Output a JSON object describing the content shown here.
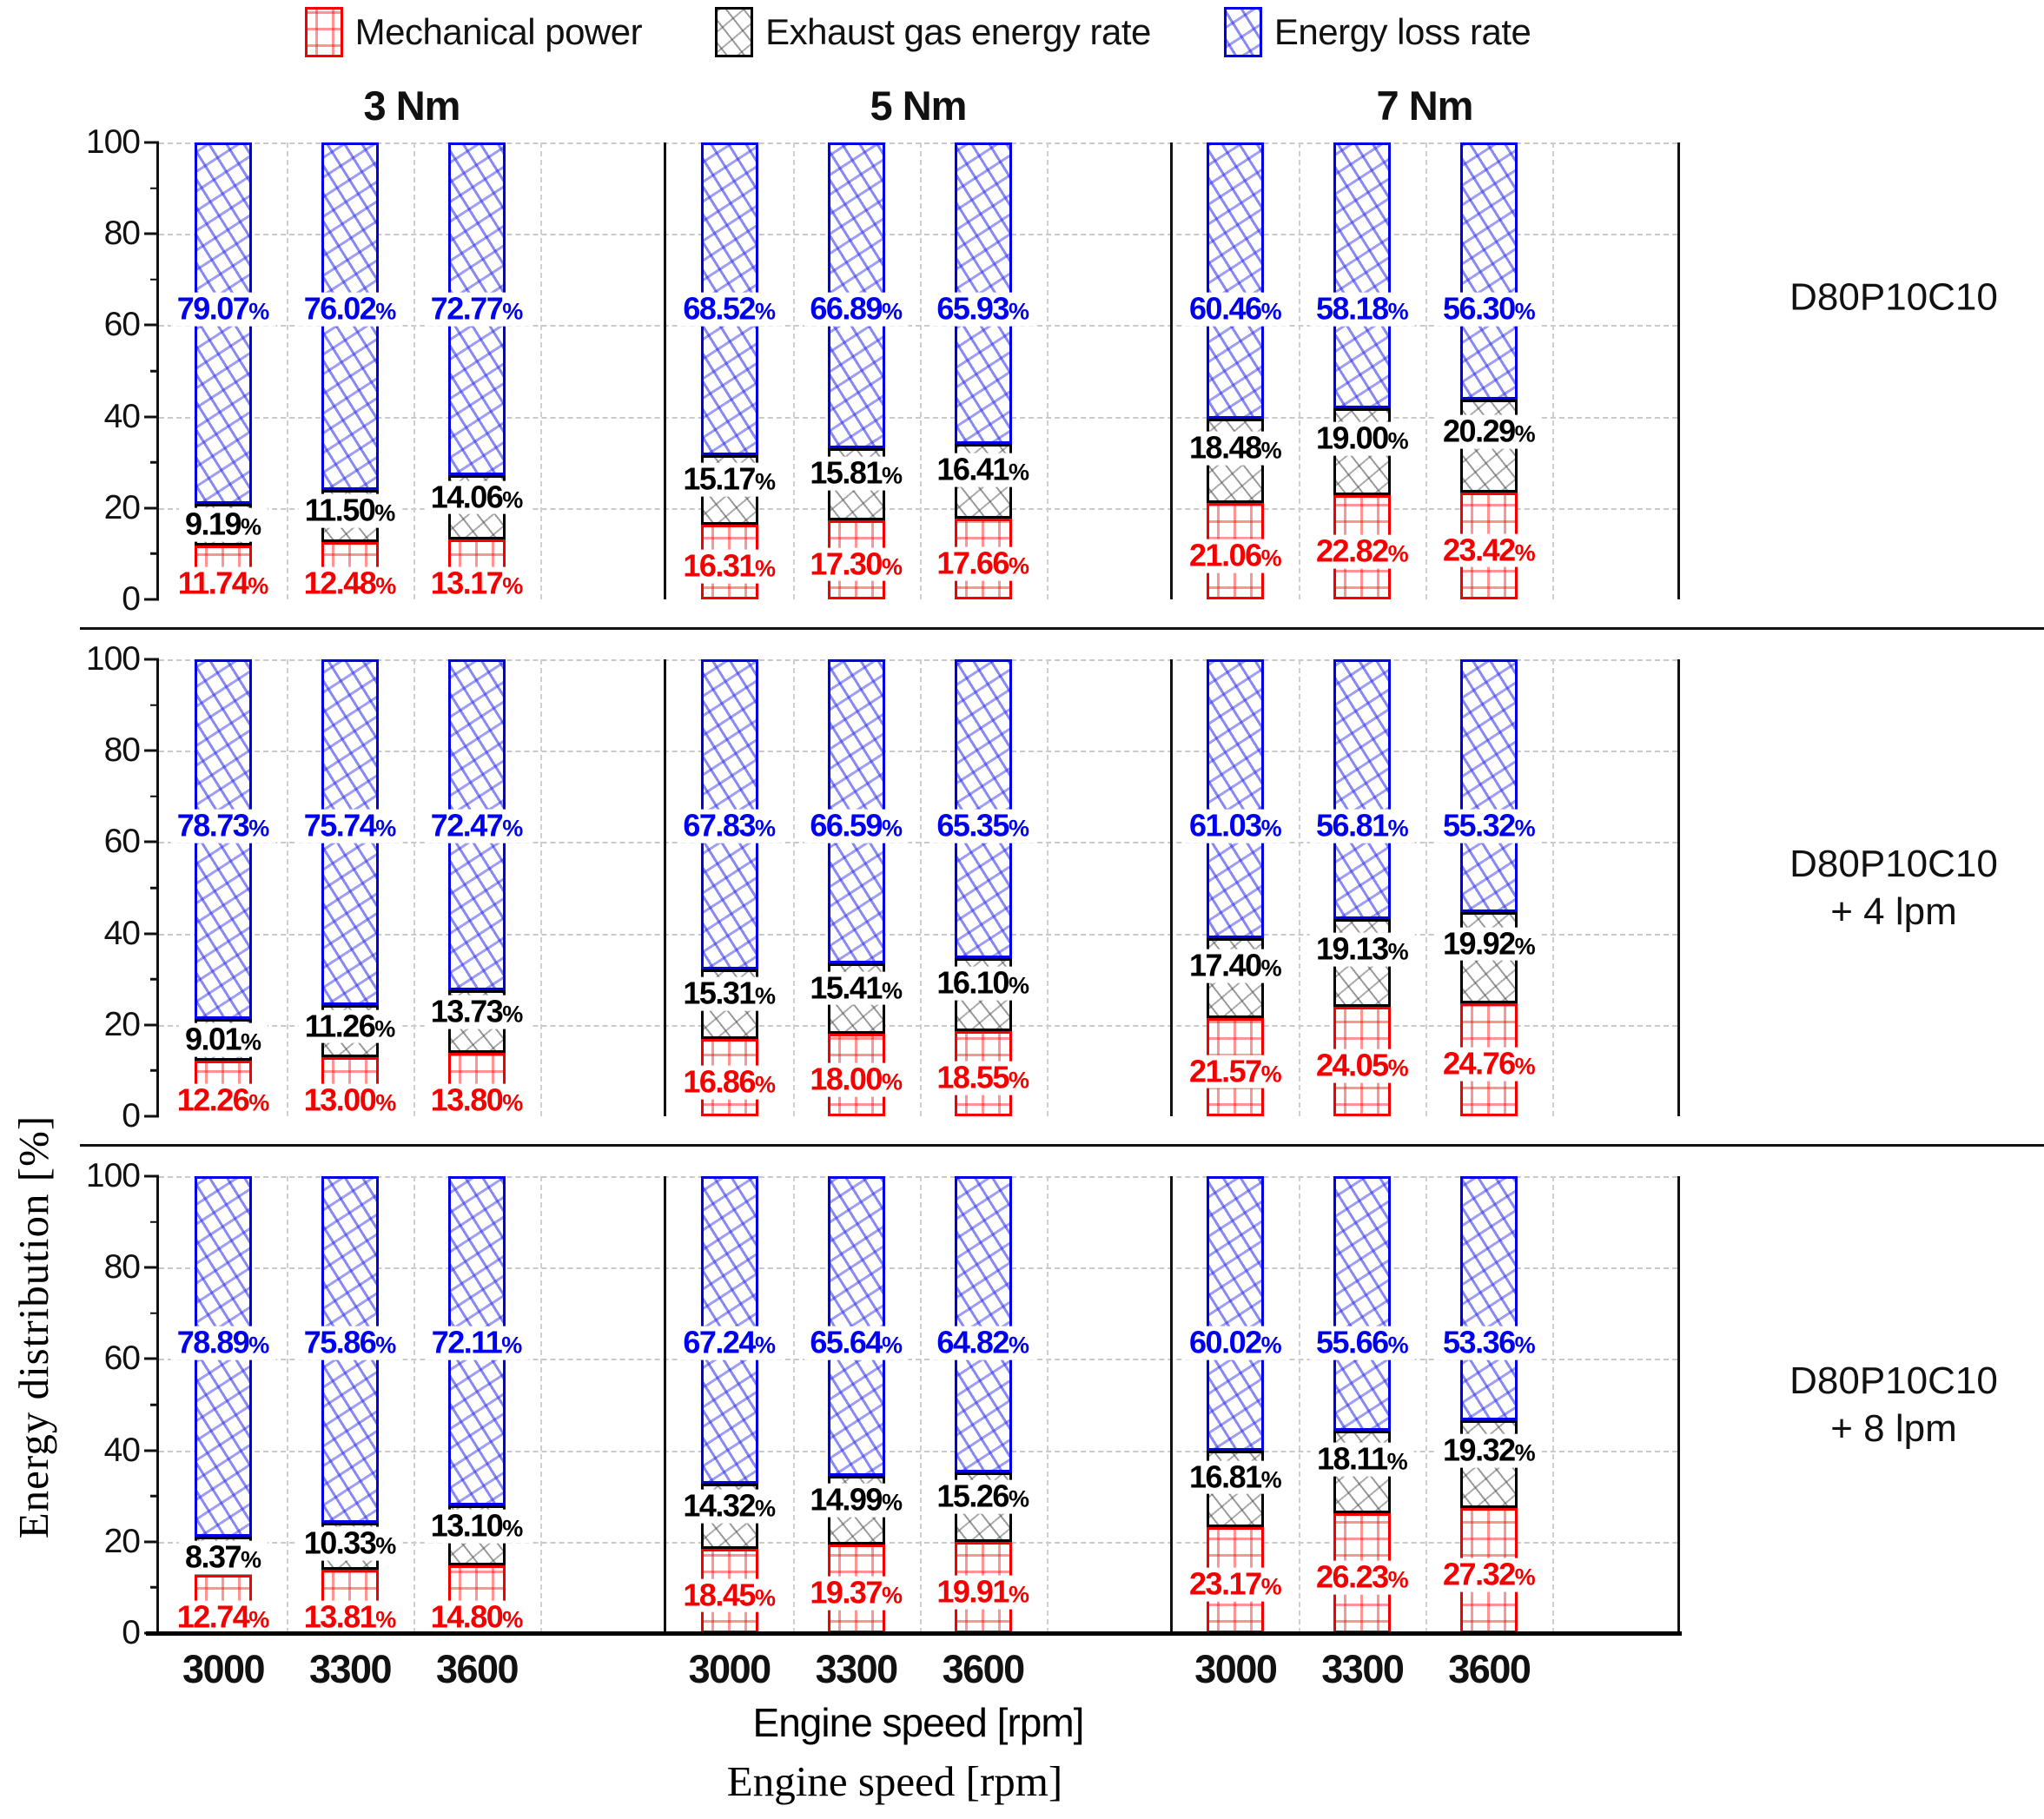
{
  "legend": [
    {
      "label": "Mechanical power",
      "color": "#ff0000"
    },
    {
      "label": "Exhaust gas energy rate",
      "color": "#000000"
    },
    {
      "label": "Energy loss rate",
      "color": "#0000ff"
    }
  ],
  "axes": {
    "ylabel": "Energy distribution  [%]",
    "xlabel": "Engine speed [rpm]",
    "xlabel_caption": "Engine speed [rpm]",
    "yticks": [
      "100",
      "80",
      "60",
      "40",
      "20",
      "0"
    ],
    "unit": "%"
  },
  "chart_data": {
    "type": "bar",
    "stacked": true,
    "grid": true,
    "legend_position": "top",
    "ylim": [
      0,
      100
    ],
    "ylabel": "Energy distribution [%]",
    "xlabel": "Engine speed [rpm]",
    "torque_titles": [
      "3 Nm",
      "5 Nm",
      "7 Nm"
    ],
    "speeds_rpm": [
      "3000",
      "3300",
      "3600"
    ],
    "series_order": [
      "Mechanical power",
      "Exhaust gas energy rate",
      "Energy loss rate"
    ],
    "panels": [
      {
        "row_label": "D80P10C10",
        "row_label2": "",
        "groups": [
          {
            "torque": "3 Nm",
            "bars": [
              {
                "speed": "3000",
                "mechanical_power": "11.74",
                "exhaust_gas": "9.19",
                "energy_loss": "79.07"
              },
              {
                "speed": "3300",
                "mechanical_power": "12.48",
                "exhaust_gas": "11.50",
                "energy_loss": "76.02"
              },
              {
                "speed": "3600",
                "mechanical_power": "13.17",
                "exhaust_gas": "14.06",
                "energy_loss": "72.77"
              }
            ]
          },
          {
            "torque": "5 Nm",
            "bars": [
              {
                "speed": "3000",
                "mechanical_power": "16.31",
                "exhaust_gas": "15.17",
                "energy_loss": "68.52"
              },
              {
                "speed": "3300",
                "mechanical_power": "17.30",
                "exhaust_gas": "15.81",
                "energy_loss": "66.89"
              },
              {
                "speed": "3600",
                "mechanical_power": "17.66",
                "exhaust_gas": "16.41",
                "energy_loss": "65.93"
              }
            ]
          },
          {
            "torque": "7 Nm",
            "bars": [
              {
                "speed": "3000",
                "mechanical_power": "21.06",
                "exhaust_gas": "18.48",
                "energy_loss": "60.46"
              },
              {
                "speed": "3300",
                "mechanical_power": "22.82",
                "exhaust_gas": "19.00",
                "energy_loss": "58.18"
              },
              {
                "speed": "3600",
                "mechanical_power": "23.42",
                "exhaust_gas": "20.29",
                "energy_loss": "56.30"
              }
            ]
          }
        ]
      },
      {
        "row_label": "D80P10C10",
        "row_label2": "+ 4 lpm",
        "groups": [
          {
            "torque": "3 Nm",
            "bars": [
              {
                "speed": "3000",
                "mechanical_power": "12.26",
                "exhaust_gas": "9.01",
                "energy_loss": "78.73"
              },
              {
                "speed": "3300",
                "mechanical_power": "13.00",
                "exhaust_gas": "11.26",
                "energy_loss": "75.74"
              },
              {
                "speed": "3600",
                "mechanical_power": "13.80",
                "exhaust_gas": "13.73",
                "energy_loss": "72.47"
              }
            ]
          },
          {
            "torque": "5 Nm",
            "bars": [
              {
                "speed": "3000",
                "mechanical_power": "16.86",
                "exhaust_gas": "15.31",
                "energy_loss": "67.83"
              },
              {
                "speed": "3300",
                "mechanical_power": "18.00",
                "exhaust_gas": "15.41",
                "energy_loss": "66.59"
              },
              {
                "speed": "3600",
                "mechanical_power": "18.55",
                "exhaust_gas": "16.10",
                "energy_loss": "65.35"
              }
            ]
          },
          {
            "torque": "7 Nm",
            "bars": [
              {
                "speed": "3000",
                "mechanical_power": "21.57",
                "exhaust_gas": "17.40",
                "energy_loss": "61.03"
              },
              {
                "speed": "3300",
                "mechanical_power": "24.05",
                "exhaust_gas": "19.13",
                "energy_loss": "56.81"
              },
              {
                "speed": "3600",
                "mechanical_power": "24.76",
                "exhaust_gas": "19.92",
                "energy_loss": "55.32"
              }
            ]
          }
        ]
      },
      {
        "row_label": "D80P10C10",
        "row_label2": "+ 8 lpm",
        "groups": [
          {
            "torque": "3 Nm",
            "bars": [
              {
                "speed": "3000",
                "mechanical_power": "12.74",
                "exhaust_gas": "8.37",
                "energy_loss": "78.89"
              },
              {
                "speed": "3300",
                "mechanical_power": "13.81",
                "exhaust_gas": "10.33",
                "energy_loss": "75.86"
              },
              {
                "speed": "3600",
                "mechanical_power": "14.80",
                "exhaust_gas": "13.10",
                "energy_loss": "72.11"
              }
            ]
          },
          {
            "torque": "5 Nm",
            "bars": [
              {
                "speed": "3000",
                "mechanical_power": "18.45",
                "exhaust_gas": "14.32",
                "energy_loss": "67.24"
              },
              {
                "speed": "3300",
                "mechanical_power": "19.37",
                "exhaust_gas": "14.99",
                "energy_loss": "65.64"
              },
              {
                "speed": "3600",
                "mechanical_power": "19.91",
                "exhaust_gas": "15.26",
                "energy_loss": "64.82"
              }
            ]
          },
          {
            "torque": "7 Nm",
            "bars": [
              {
                "speed": "3000",
                "mechanical_power": "23.17",
                "exhaust_gas": "16.81",
                "energy_loss": "60.02"
              },
              {
                "speed": "3300",
                "mechanical_power": "26.23",
                "exhaust_gas": "18.11",
                "energy_loss": "55.66"
              },
              {
                "speed": "3600",
                "mechanical_power": "27.32",
                "exhaust_gas": "19.32",
                "energy_loss": "53.36"
              }
            ]
          }
        ]
      }
    ]
  }
}
